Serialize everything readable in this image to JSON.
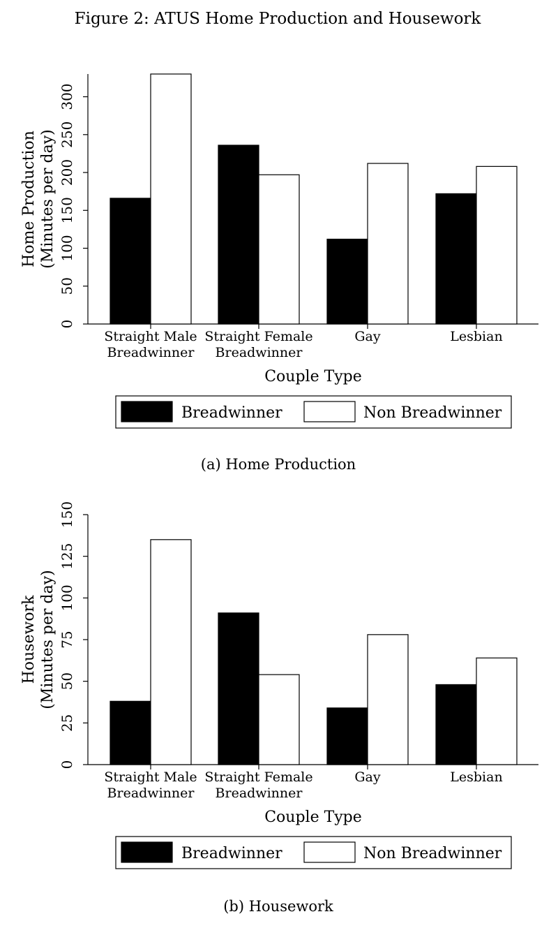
{
  "figure_title": "Figure 2: ATUS Home Production and Housework",
  "chart_data": [
    {
      "type": "bar",
      "title": "",
      "caption": "(a) Home Production",
      "xlabel": "Couple Type",
      "ylabel_lines": [
        "Home Production",
        "(Minutes per day)"
      ],
      "ylim": [
        0,
        330
      ],
      "yticks": [
        0,
        50,
        100,
        150,
        200,
        250,
        300
      ],
      "categories": [
        [
          "Straight Male",
          "Breadwinner"
        ],
        [
          "Straight Female",
          "Breadwinner"
        ],
        [
          "Gay"
        ],
        [
          "Lesbian"
        ]
      ],
      "series": [
        {
          "name": "Breadwinner",
          "fill": "#000000",
          "values": [
            166,
            236,
            112,
            172
          ]
        },
        {
          "name": "Non Breadwinner",
          "fill": "#ffffff",
          "values": [
            330,
            197,
            212,
            208
          ]
        }
      ],
      "legend": {
        "placement": "bottom",
        "entries": [
          "Breadwinner",
          "Non Breadwinner"
        ]
      }
    },
    {
      "type": "bar",
      "title": "",
      "caption": "(b) Housework",
      "xlabel": "Couple Type",
      "ylabel_lines": [
        "Housework",
        "(Minutes per day)"
      ],
      "ylim": [
        0,
        150
      ],
      "yticks": [
        0,
        25,
        50,
        75,
        100,
        125,
        150
      ],
      "categories": [
        [
          "Straight Male",
          "Breadwinner"
        ],
        [
          "Straight Female",
          "Breadwinner"
        ],
        [
          "Gay"
        ],
        [
          "Lesbian"
        ]
      ],
      "series": [
        {
          "name": "Breadwinner",
          "fill": "#000000",
          "values": [
            38,
            91,
            34,
            48
          ]
        },
        {
          "name": "Non Breadwinner",
          "fill": "#ffffff",
          "values": [
            135,
            54,
            78,
            64
          ]
        }
      ],
      "legend": {
        "placement": "bottom",
        "entries": [
          "Breadwinner",
          "Non Breadwinner"
        ]
      }
    }
  ]
}
